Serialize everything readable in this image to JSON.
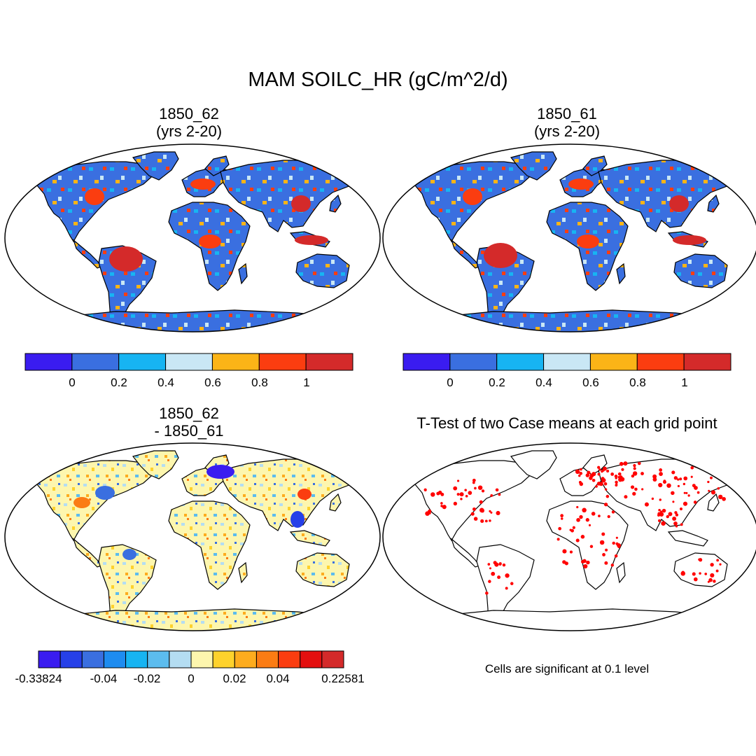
{
  "title": "MAM SOILC_HR (gC/m^2/d)",
  "panels": [
    {
      "id": "case1",
      "title_line1": "1850_62",
      "title_line2": "(yrs 2-20)"
    },
    {
      "id": "case2",
      "title_line1": "1850_61",
      "title_line2": "(yrs 2-20)"
    },
    {
      "id": "diff",
      "title_line1": "1850_62",
      "title_line2": "- 1850_61"
    },
    {
      "id": "ttest",
      "title_line1": "T-Test of two Case means at each grid point"
    }
  ],
  "colorbar_main": {
    "colors": [
      "#3a1cf0",
      "#3a6fe0",
      "#17b4f2",
      "#c9e7f5",
      "#fbb417",
      "#fb3d10",
      "#d42a2a"
    ],
    "tick_labels": [
      "0",
      "0.2",
      "0.4",
      "0.6",
      "0.8",
      "1"
    ]
  },
  "colorbar_diff": {
    "colors": [
      "#3a1cf0",
      "#2640e8",
      "#3a6fe0",
      "#1e8cf0",
      "#17b4f2",
      "#5cbcee",
      "#b4ddf2",
      "#fdf6ae",
      "#fed22c",
      "#fdac1e",
      "#fb7c14",
      "#fb3d10",
      "#e40f0f",
      "#d42a2a"
    ],
    "tick_labels": [
      "-0.33824",
      "-0.04",
      "-0.02",
      "0",
      "0.02",
      "0.04",
      "0.22581"
    ]
  },
  "significance_note": "Cells are significant at 0.1 level",
  "significance_color": "#ff0000"
}
